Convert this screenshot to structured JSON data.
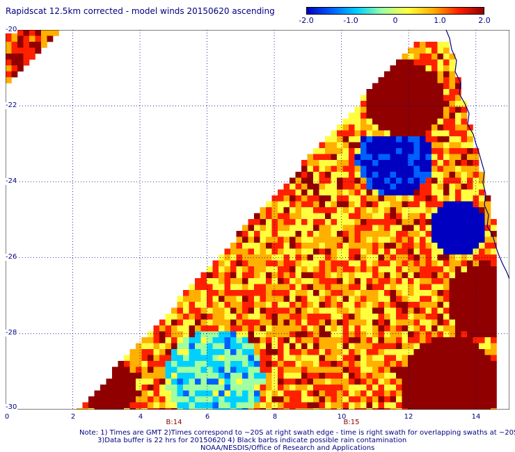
{
  "title": "Rapidscat 12.5km corrected - model winds 20150620 ascending",
  "colorbar": {
    "colors": [
      "#0000c0",
      "#0060ff",
      "#00d0ff",
      "#a0ffa0",
      "#ffff40",
      "#ffb000",
      "#ff2000",
      "#900000"
    ],
    "tick_labels": [
      "-2.0",
      "-1.0",
      "0",
      "1.0",
      "2.0"
    ],
    "min": -2.0,
    "max": 2.0
  },
  "axes": {
    "x_ticks": [
      "0",
      "2",
      "4",
      "6",
      "8",
      "10",
      "12",
      "14"
    ],
    "y_ticks": [
      "-20",
      "-22",
      "-24",
      "-26",
      "-28",
      "-30"
    ],
    "x_range": [
      0,
      15
    ],
    "y_range": [
      -30,
      -20
    ]
  },
  "rev_labels": [
    {
      "text": "B:14",
      "x": 5
    },
    {
      "text": "B:15",
      "x": 10.3
    }
  ],
  "notes": {
    "line1": "Note: 1) Times are GMT 2)Times correspond to ~20S at right swath edge - time is right swath for overlapping swaths at ~20S",
    "line2": "3)Data buffer is 22 hrs for 20150620 4) Black barbs indicate possible rain contamination",
    "line3": "NOAA/NESDIS/Office of Research and Applications"
  }
}
